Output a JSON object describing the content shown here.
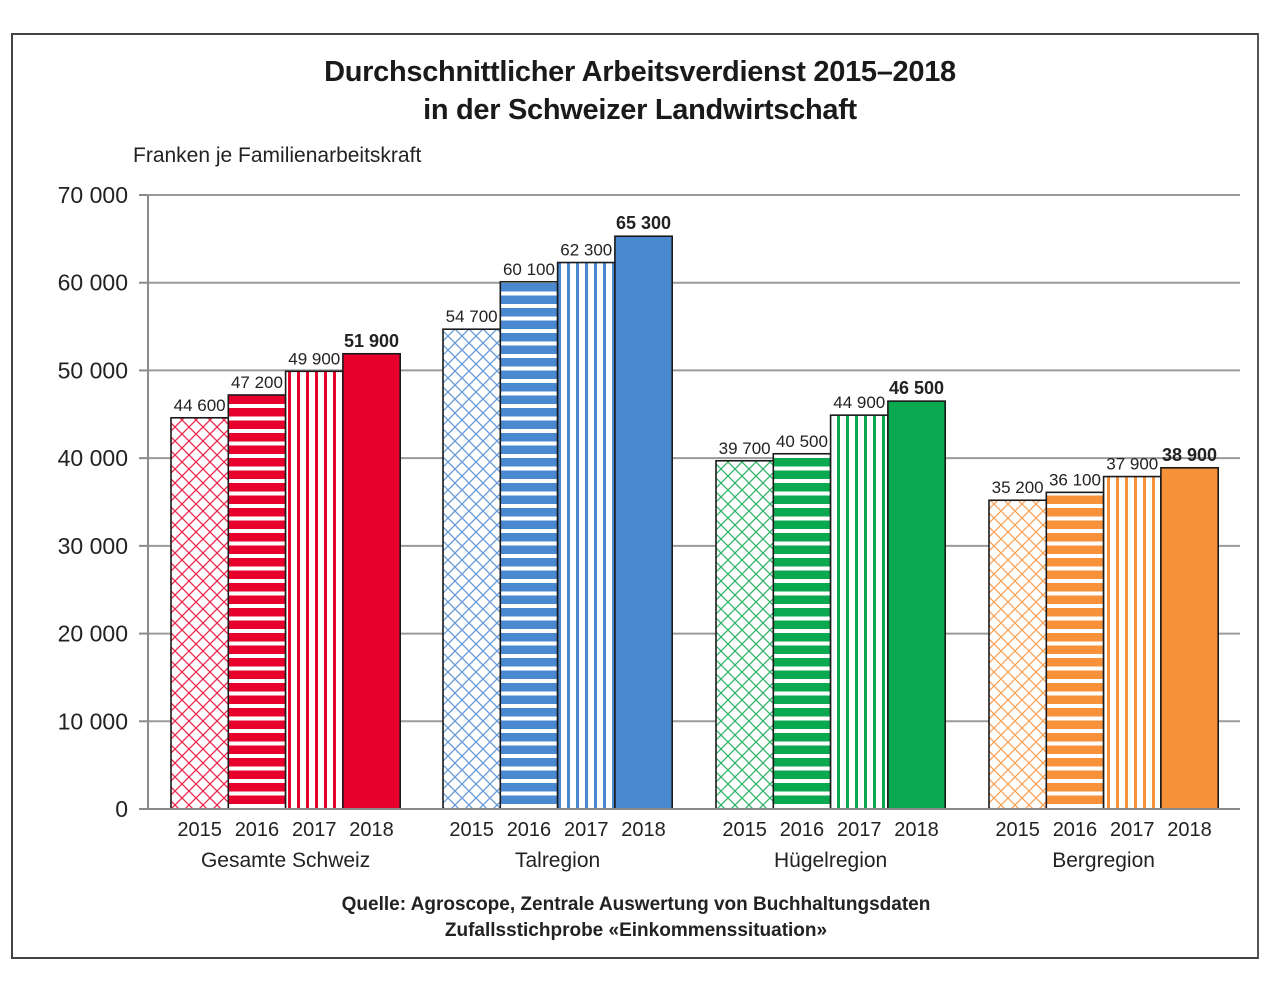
{
  "chart_data": {
    "type": "bar",
    "title": "Durchschnittlicher Arbeitsverdienst 2015–2018",
    "subtitle": "in der Schweizer Landwirtschaft",
    "ylabel": "Franken je Familienarbeitskraft",
    "xlabel": "",
    "ylim": [
      0,
      70000
    ],
    "yticks": [
      0,
      10000,
      20000,
      30000,
      40000,
      50000,
      60000,
      70000
    ],
    "ytick_labels": [
      "0",
      "10 000",
      "20 000",
      "30 000",
      "40 000",
      "50 000",
      "60 000",
      "70 000"
    ],
    "grid": true,
    "legend": "none",
    "categories": [
      "Gesamte Schweiz",
      "Talregion",
      "Hügelregion",
      "Bergregion"
    ],
    "years": [
      "2015",
      "2016",
      "2017",
      "2018"
    ],
    "patterns": [
      "crosshatch",
      "horizontal-stripes",
      "vertical-stripes",
      "solid"
    ],
    "groups": [
      {
        "name": "Gesamte Schweiz",
        "color": "#e8002d",
        "values": [
          44600,
          47200,
          49900,
          51900
        ],
        "labels": [
          "44 600",
          "47 200",
          "49 900",
          "51 900"
        ]
      },
      {
        "name": "Talregion",
        "color": "#4a89d0",
        "values": [
          54700,
          60100,
          62300,
          65300
        ],
        "labels": [
          "54 700",
          "60 100",
          "62 300",
          "65 300"
        ]
      },
      {
        "name": "Hügelregion",
        "color": "#0aa84f",
        "values": [
          39700,
          40500,
          44900,
          46500
        ],
        "labels": [
          "39 700",
          "40 500",
          "44 900",
          "46 500"
        ]
      },
      {
        "name": "Bergregion",
        "color": "#f7923a",
        "values": [
          35200,
          36100,
          37900,
          38900
        ],
        "labels": [
          "35 200",
          "36 100",
          "37 900",
          "38 900"
        ]
      }
    ],
    "source_line1": "Quelle: Agroscope, Zentrale Auswertung von Buchhaltungsdaten",
    "source_line2": "Zufallsstichprobe «Einkommenssituation»"
  }
}
